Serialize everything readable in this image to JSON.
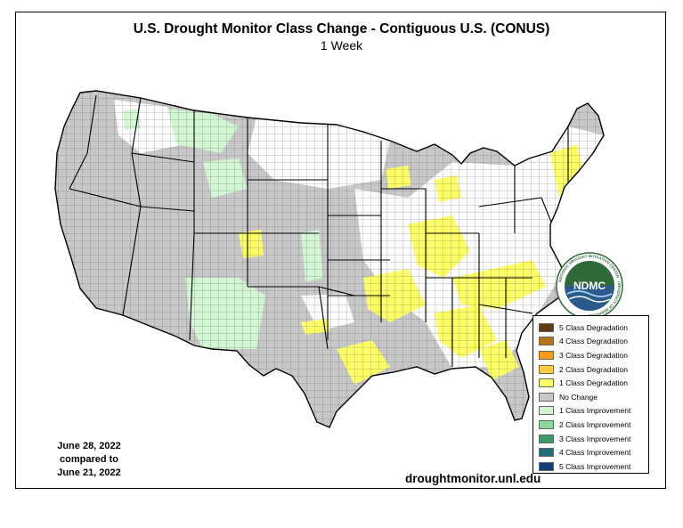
{
  "title": "U.S. Drought Monitor Class Change - Contiguous U.S. (CONUS)",
  "subtitle": "1 Week",
  "dates": {
    "line1": "June 28, 2022",
    "line2": "compared to",
    "line3": "June 21, 2022"
  },
  "url": "droughtmonitor.unl.edu",
  "logo": {
    "text": "NDMC",
    "ring_text": "NATIONAL DROUGHT MITIGATION CENTER · UNIVERSITY OF NEBRASKA"
  },
  "legend": [
    {
      "label": "5 Class Degradation",
      "color": "#5c3a13"
    },
    {
      "label": "4 Class Degradation",
      "color": "#b5731a"
    },
    {
      "label": "3 Class Degradation",
      "color": "#ff9a1a"
    },
    {
      "label": "2 Class Degradation",
      "color": "#ffcc40"
    },
    {
      "label": "1 Class Degradation",
      "color": "#ffff66"
    },
    {
      "label": "No Change",
      "color": "#c8c8c8"
    },
    {
      "label": "1 Class Improvement",
      "color": "#d2f5d2"
    },
    {
      "label": "2 Class Improvement",
      "color": "#8ed89a"
    },
    {
      "label": "3 Class Improvement",
      "color": "#3a9a6a"
    },
    {
      "label": "4 Class Improvement",
      "color": "#1f6e7a"
    },
    {
      "label": "5 Class Improvement",
      "color": "#123f7a"
    }
  ],
  "colors": {
    "no_change": "#c8c8c8",
    "degradation_1": "#ffff66",
    "improvement_1": "#d2f5d2",
    "county_line": "#555555",
    "state_line": "#000000",
    "logo_green": "#2f6b3a",
    "logo_blue": "#2a5a8c"
  }
}
